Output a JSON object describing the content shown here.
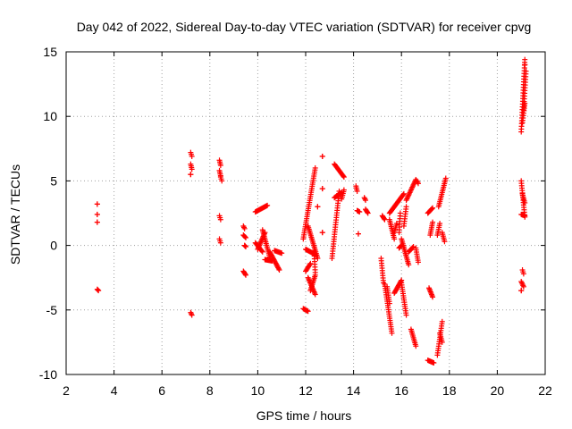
{
  "chart_data": {
    "type": "scatter",
    "title": "Day 042 of 2022, Sidereal Day-to-day VTEC variation (SDTVAR) for receiver cpvg",
    "xlabel": "GPS time / hours",
    "ylabel": "SDTVAR / TECUs",
    "xlim": [
      2,
      22
    ],
    "ylim": [
      -10,
      15
    ],
    "xticks": [
      2,
      4,
      6,
      8,
      10,
      12,
      14,
      16,
      18,
      20,
      22
    ],
    "yticks": [
      -10,
      -5,
      0,
      5,
      10,
      15
    ],
    "grid": true,
    "marker": "+",
    "color": "#ff0000",
    "series": [
      {
        "name": "SDTVAR",
        "segments": [
          [
            3.3,
            3.2,
            3.3,
            3.2
          ],
          [
            3.3,
            2.4,
            3.3,
            2.4
          ],
          [
            3.3,
            1.8,
            3.3,
            1.8
          ],
          [
            3.3,
            -3.4,
            3.35,
            -3.5
          ],
          [
            7.2,
            7.2,
            7.25,
            6.9
          ],
          [
            7.2,
            6.3,
            7.25,
            5.9
          ],
          [
            7.2,
            5.5,
            7.2,
            5.5
          ],
          [
            7.2,
            -5.2,
            7.25,
            -5.4
          ],
          [
            8.4,
            6.6,
            8.45,
            6.2
          ],
          [
            8.4,
            5.8,
            8.45,
            5.4
          ],
          [
            8.4,
            2.3,
            8.45,
            2.0
          ],
          [
            8.4,
            0.5,
            8.45,
            0.2
          ],
          [
            8.45,
            5.3,
            8.5,
            5.0
          ],
          [
            9.4,
            1.5,
            9.45,
            1.3
          ],
          [
            9.4,
            0.8,
            9.5,
            0.6
          ],
          [
            9.45,
            0.0,
            9.5,
            -0.1
          ],
          [
            9.4,
            -2.0,
            9.5,
            -2.3
          ],
          [
            9.9,
            2.6,
            10.4,
            3.1
          ],
          [
            9.9,
            0.2,
            10.2,
            -0.5
          ],
          [
            10.0,
            -0.3,
            10.3,
            1.0
          ],
          [
            10.2,
            1.2,
            10.5,
            -0.9
          ],
          [
            10.3,
            -1.1,
            10.6,
            -1.2
          ],
          [
            10.5,
            -0.5,
            10.9,
            -1.9
          ],
          [
            10.7,
            -0.4,
            11.0,
            -0.6
          ],
          [
            11.9,
            -4.9,
            12.1,
            -5.1
          ],
          [
            11.9,
            0.5,
            12.4,
            6.0
          ],
          [
            12.0,
            -2.0,
            12.2,
            -1.4
          ],
          [
            12.0,
            -0.3,
            12.4,
            -0.7
          ],
          [
            12.1,
            1.5,
            12.5,
            -1.0
          ],
          [
            12.1,
            -2.5,
            12.4,
            -3.8
          ],
          [
            12.2,
            -3.5,
            12.4,
            -2.3
          ],
          [
            12.35,
            -0.4,
            12.4,
            -2.1
          ],
          [
            12.5,
            3.0,
            12.5,
            3.0
          ],
          [
            12.7,
            4.4,
            12.7,
            4.4
          ],
          [
            12.7,
            6.9,
            12.7,
            6.9
          ],
          [
            12.7,
            1.0,
            12.7,
            1.0
          ],
          [
            13.1,
            -1.0,
            13.4,
            4.2
          ],
          [
            13.2,
            6.3,
            13.6,
            5.3
          ],
          [
            13.2,
            3.7,
            13.5,
            4.1
          ],
          [
            13.5,
            3.6,
            13.6,
            4.3
          ],
          [
            14.1,
            4.6,
            14.15,
            4.2
          ],
          [
            14.15,
            2.7,
            14.25,
            2.6
          ],
          [
            14.2,
            0.9,
            14.2,
            0.9
          ],
          [
            14.45,
            3.7,
            14.5,
            3.5
          ],
          [
            14.5,
            2.8,
            14.6,
            2.5
          ],
          [
            15.15,
            -1.0,
            15.25,
            -2.9
          ],
          [
            15.2,
            2.3,
            15.3,
            2.0
          ],
          [
            15.3,
            -3.0,
            15.6,
            -6.8
          ],
          [
            15.4,
            -3.2,
            15.5,
            -4.5
          ],
          [
            15.5,
            2.0,
            15.7,
            0.5
          ],
          [
            15.5,
            2.5,
            16.1,
            4.0
          ],
          [
            15.7,
            1.0,
            15.8,
            1.7
          ],
          [
            15.7,
            -3.7,
            16.0,
            -2.7
          ],
          [
            15.9,
            -0.2,
            16.0,
            0.0
          ],
          [
            15.95,
            2.5,
            15.9,
            1.0
          ],
          [
            16.0,
            0.5,
            16.3,
            -1.5
          ],
          [
            16.0,
            -2.9,
            16.2,
            -5.4
          ],
          [
            16.1,
            1.5,
            16.2,
            3.0
          ],
          [
            16.2,
            3.5,
            16.6,
            5.1
          ],
          [
            16.3,
            -0.5,
            16.5,
            -0.1
          ],
          [
            16.4,
            -6.5,
            16.6,
            -7.8
          ],
          [
            16.6,
            -0.2,
            16.7,
            -1.3
          ],
          [
            16.65,
            5.0,
            16.7,
            4.8
          ],
          [
            17.1,
            2.5,
            17.3,
            2.9
          ],
          [
            17.15,
            -3.3,
            17.3,
            -4.0
          ],
          [
            17.2,
            0.8,
            17.3,
            1.8
          ],
          [
            17.1,
            -8.9,
            17.35,
            -9.1
          ],
          [
            17.5,
            -8.5,
            17.7,
            -5.9
          ],
          [
            17.5,
            0.8,
            17.6,
            1.7
          ],
          [
            17.55,
            3.0,
            17.85,
            5.2
          ],
          [
            17.6,
            -6.8,
            17.7,
            -7.5
          ],
          [
            17.7,
            1.0,
            17.8,
            0.3
          ],
          [
            21.0,
            8.8,
            21.15,
            14.4
          ],
          [
            21.05,
            9.5,
            21.15,
            11.0
          ],
          [
            21.1,
            10.5,
            21.2,
            13.5
          ],
          [
            21.15,
            14.0,
            21.15,
            14.0
          ],
          [
            21.0,
            5.0,
            21.15,
            2.2
          ],
          [
            21.05,
            4.0,
            21.15,
            3.3
          ],
          [
            21.0,
            2.4,
            21.15,
            2.3
          ],
          [
            21.05,
            -1.9,
            21.1,
            -2.2
          ],
          [
            21.0,
            -2.8,
            21.1,
            -3.2
          ],
          [
            21.0,
            -3.5,
            21.0,
            -3.5
          ]
        ]
      }
    ]
  }
}
